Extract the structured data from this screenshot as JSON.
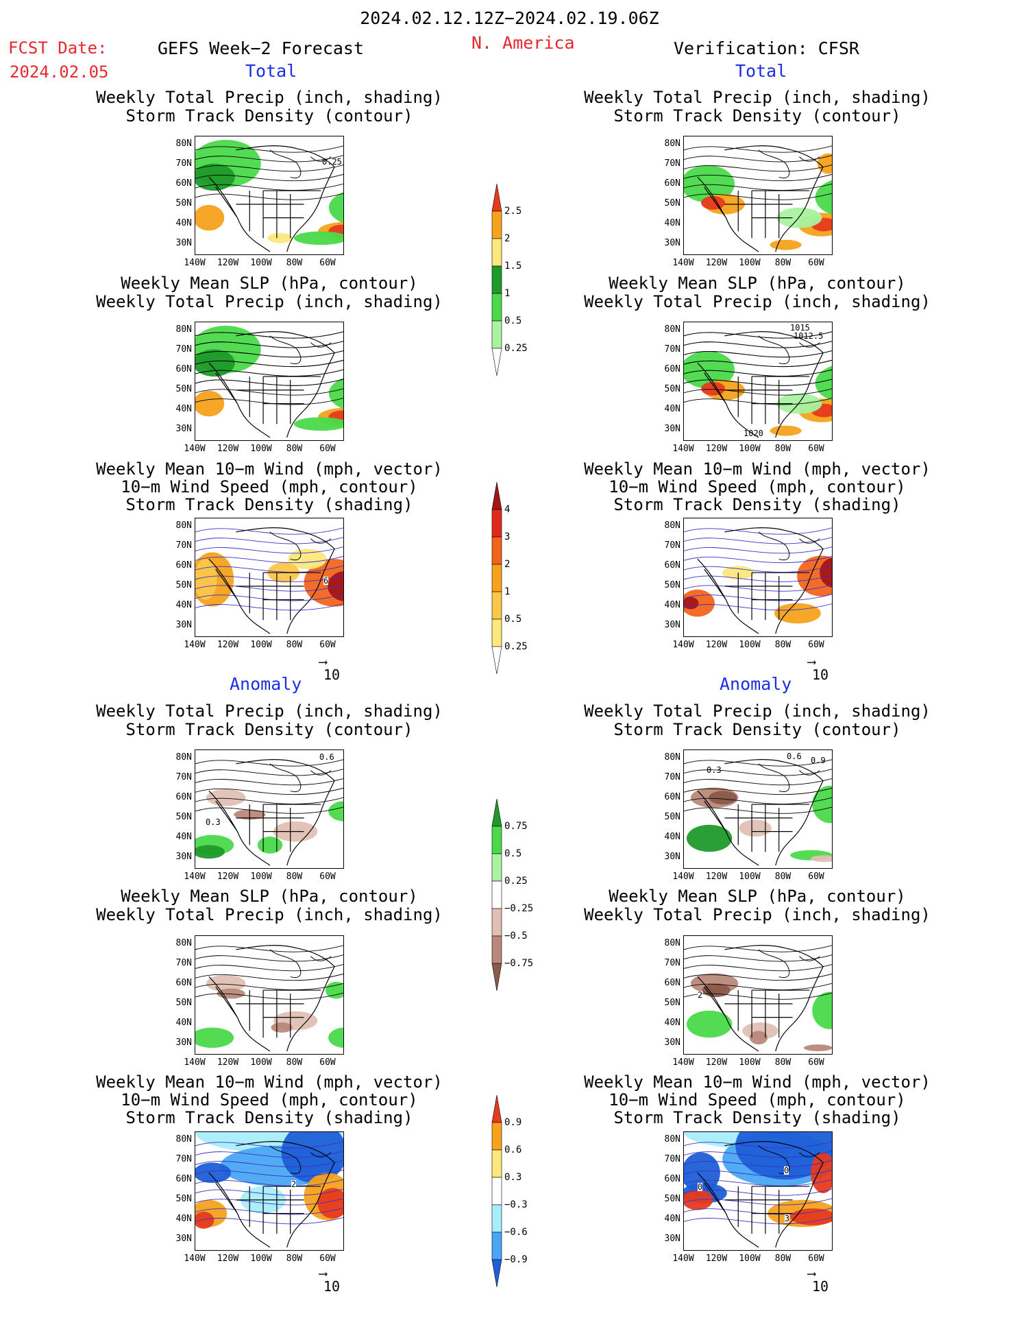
{
  "header": {
    "date_range": "2024.02.12.12Z−2024.02.19.06Z",
    "fcst_label": "FCST Date:",
    "fcst_date": "2024.02.05",
    "left_title": "GEFS Week−2 Forecast",
    "region": "N. America",
    "right_title": "Verification: CFSR"
  },
  "sections": {
    "total": "Total",
    "anomaly": "Anomaly"
  },
  "panel_titles": {
    "precip_track": [
      "Weekly Total Precip (inch, shading)",
      "Storm Track Density (contour)"
    ],
    "slp_precip": [
      "Weekly Mean SLP (hPa, contour)",
      "Weekly Total Precip (inch, shading)"
    ],
    "wind_track": [
      "Weekly Mean 10−m Wind (mph, vector)",
      "10−m Wind Speed (mph, contour)",
      "Storm Track Density (shading)"
    ]
  },
  "axes": {
    "lat_labels": [
      "80N",
      "70N",
      "60N",
      "50N",
      "40N",
      "30N"
    ],
    "lon_labels": [
      "140W",
      "120W",
      "100W",
      "80W",
      "60W"
    ]
  },
  "vector_ref": "10",
  "colorbars": {
    "precip_total": {
      "labels": [
        "2.5",
        "2",
        "1.5",
        "1",
        "0.5",
        "0.25"
      ],
      "colors": [
        "#e63a1e",
        "#f7a21c",
        "#fde87d",
        "#1f9a2a",
        "#4bd94b",
        "#a8f2a0",
        "#ffffff"
      ]
    },
    "track_total": {
      "labels": [
        "4",
        "3",
        "2",
        "1",
        "0.5",
        "0.25"
      ],
      "colors": [
        "#a31616",
        "#e02a1c",
        "#f2641c",
        "#f7a21c",
        "#fcc64a",
        "#fde87d",
        "#ffffff"
      ]
    },
    "precip_anom": {
      "labels": [
        "0.75",
        "0.5",
        "0.25",
        "−0.25",
        "−0.5",
        "−0.75"
      ],
      "colors": [
        "#1f9a2a",
        "#4bd94b",
        "#a8f2a0",
        "#ffffff",
        "#e0c0b4",
        "#b8897a",
        "#8a5a4a"
      ]
    },
    "track_anom": {
      "labels": [
        "0.9",
        "0.6",
        "0.3",
        "−0.3",
        "−0.6",
        "−0.9"
      ],
      "colors": [
        "#e63a1e",
        "#f7a21c",
        "#fde87d",
        "#ffffff",
        "#a8eefa",
        "#4aa6f2",
        "#1e5ed6"
      ]
    }
  },
  "contour_labels": {
    "l1": "0.25",
    "r2a": "1015",
    "r2b": "1012.5",
    "r2c": "1020",
    "l3": "6",
    "l4": "0.6",
    "l4b": "0.3",
    "r4a": "0.6",
    "r4b": "0.9",
    "r4c": "0.3",
    "r5": "2",
    "l6": "2",
    "r6a": "0",
    "r6b": "0",
    "r6c": "3"
  }
}
